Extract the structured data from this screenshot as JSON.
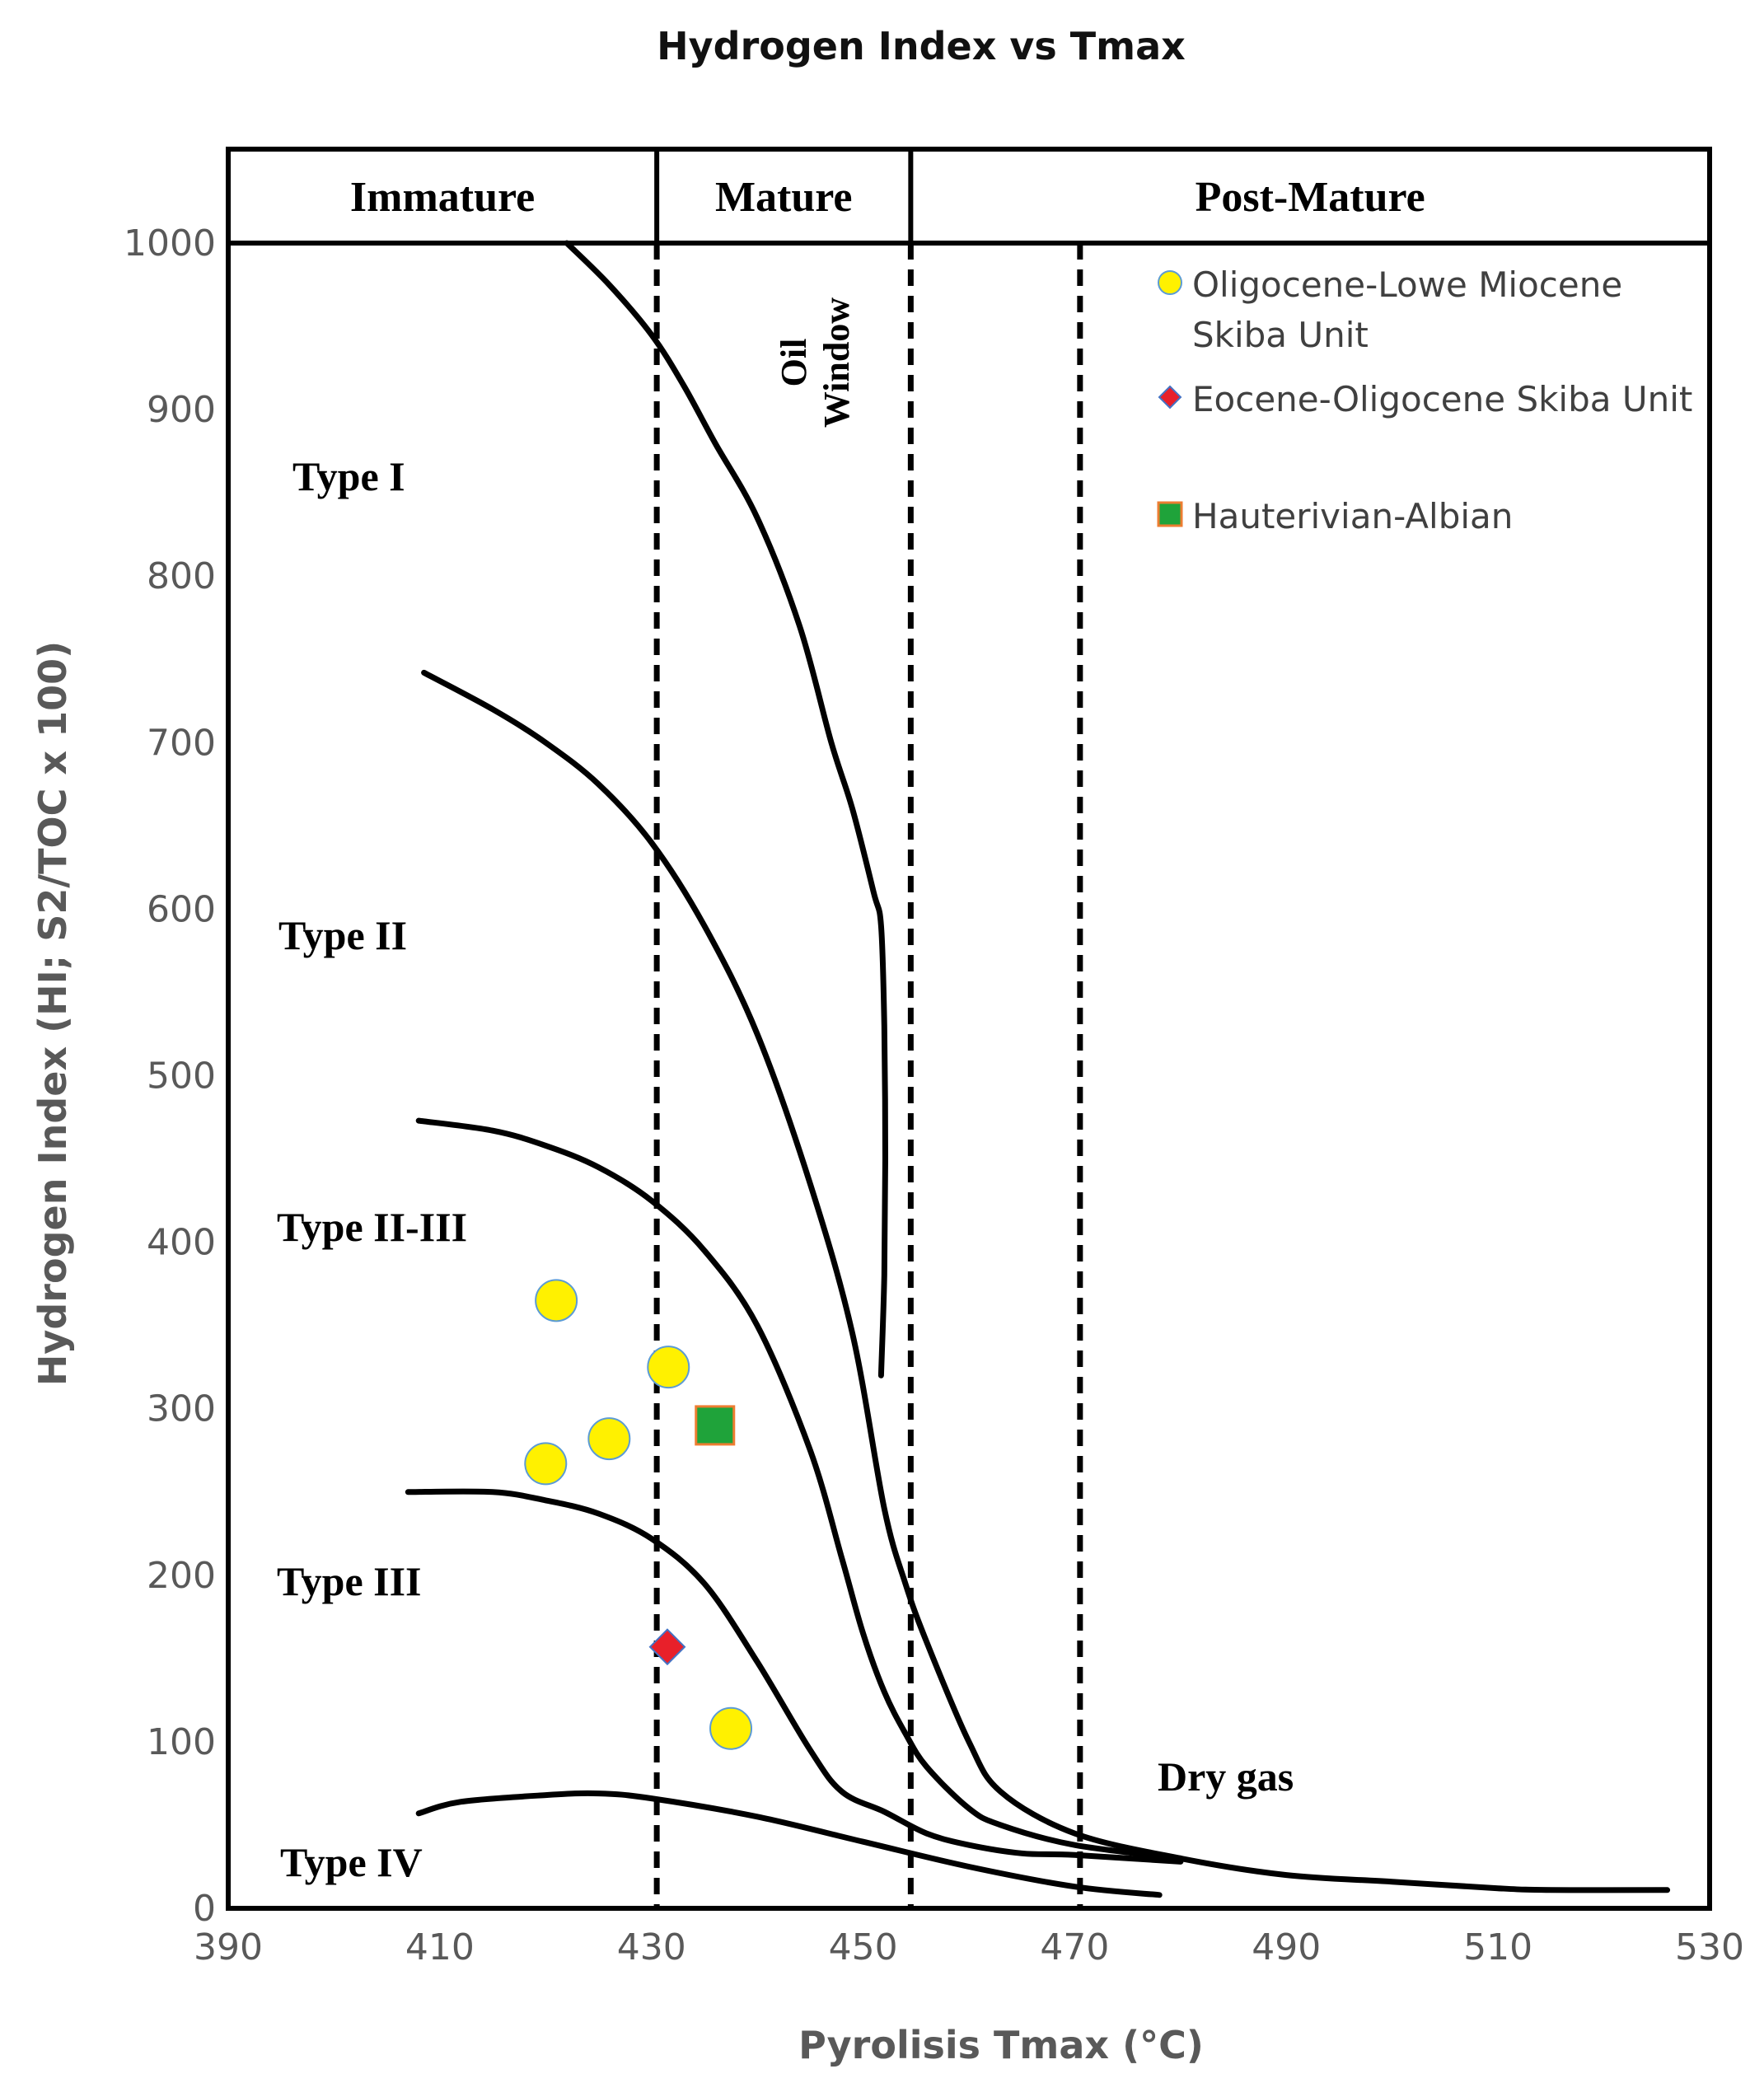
{
  "chart_data": {
    "type": "scatter",
    "title": "Hydrogen Index vs Tmax",
    "xlabel": "Pyrolisis Tmax (°C)",
    "ylabel": "Hydrogen Index (HI; S2/TOC x 100)",
    "xlim": [
      390,
      530
    ],
    "ylim": [
      0,
      1000
    ],
    "xticks": [
      390,
      410,
      430,
      450,
      470,
      490,
      510,
      530
    ],
    "yticks": [
      0,
      100,
      200,
      300,
      400,
      500,
      600,
      700,
      800,
      900,
      1000
    ],
    "grid": false,
    "maturity_zones": [
      {
        "label": "Immature",
        "from": 390,
        "to": 430.5
      },
      {
        "label": "Mature",
        "from": 430.5,
        "to": 454.5
      },
      {
        "label": "Post-Mature",
        "from": 454.5,
        "to": 530
      }
    ],
    "boundaries": [
      430.5,
      454.5,
      470.5
    ],
    "oil_window_label": [
      "Oil",
      "Window"
    ],
    "dry_gas_label": "Dry gas",
    "kerogen_curves": [
      {
        "name": "Type I",
        "x": [
          422,
          426,
          430,
          433,
          436,
          440,
          444,
          447,
          449,
          451,
          451.7,
          452,
          452.1,
          452,
          451.7
        ],
        "y": [
          1000,
          975,
          945,
          915,
          880,
          835,
          770,
          700,
          660,
          610,
          590,
          530,
          450,
          380,
          320
        ]
      },
      {
        "name": "Type II",
        "x": [
          408.5,
          415,
          420,
          425,
          430,
          435,
          440,
          445,
          449,
          452,
          454,
          456,
          460,
          463,
          470,
          480,
          490,
          500,
          510,
          515,
          526
        ],
        "y": [
          742,
          720,
          700,
          675,
          640,
          590,
          525,
          435,
          345,
          240,
          195,
          160,
          100,
          70,
          45,
          30,
          20,
          16,
          12,
          11,
          11
        ]
      },
      {
        "name": "Type II-III",
        "x": [
          408,
          415,
          420,
          425,
          430,
          435,
          440,
          445,
          448,
          450,
          452,
          454,
          456,
          460,
          463,
          470,
          480
        ],
        "y": [
          473,
          467,
          458,
          445,
          425,
          395,
          350,
          275,
          210,
          165,
          130,
          105,
          85,
          60,
          50,
          38,
          30
        ]
      },
      {
        "name": "Type III",
        "x": [
          407,
          415,
          420,
          425,
          430,
          435,
          440,
          445,
          448,
          452,
          456,
          460,
          465,
          470,
          480
        ],
        "y": [
          250,
          250,
          245,
          237,
          222,
          195,
          148,
          95,
          70,
          58,
          45,
          38,
          33,
          32,
          28
        ]
      },
      {
        "name": "Type IV",
        "x": [
          408,
          412,
          420,
          425,
          430,
          440,
          450,
          460,
          470,
          478
        ],
        "y": [
          57,
          64,
          68,
          69,
          66,
          55,
          40,
          25,
          13,
          8
        ]
      }
    ],
    "zone_labels": [
      "Type I",
      "Type II",
      "Type II-III",
      "Type III",
      "Type IV"
    ],
    "series": [
      {
        "name": "Oligocene-Lowe Miocene",
        "name_line2": "Skiba Unit",
        "marker": "circle",
        "color": "#FFF100",
        "edge": "#5B9BD5",
        "points": [
          [
            421,
            365
          ],
          [
            420,
            267
          ],
          [
            426,
            282
          ],
          [
            431.6,
            325
          ],
          [
            437.5,
            108
          ]
        ]
      },
      {
        "name": "Eocene-Oligocene Skiba Unit",
        "marker": "diamond",
        "color": "#E8202A",
        "edge": "#4472C4",
        "points": [
          [
            431.5,
            157
          ]
        ]
      },
      {
        "name": "Hauterivian-Albian",
        "marker": "square",
        "color": "#1FA33A",
        "edge": "#ED7D31",
        "points": [
          [
            436,
            290
          ]
        ]
      }
    ]
  }
}
